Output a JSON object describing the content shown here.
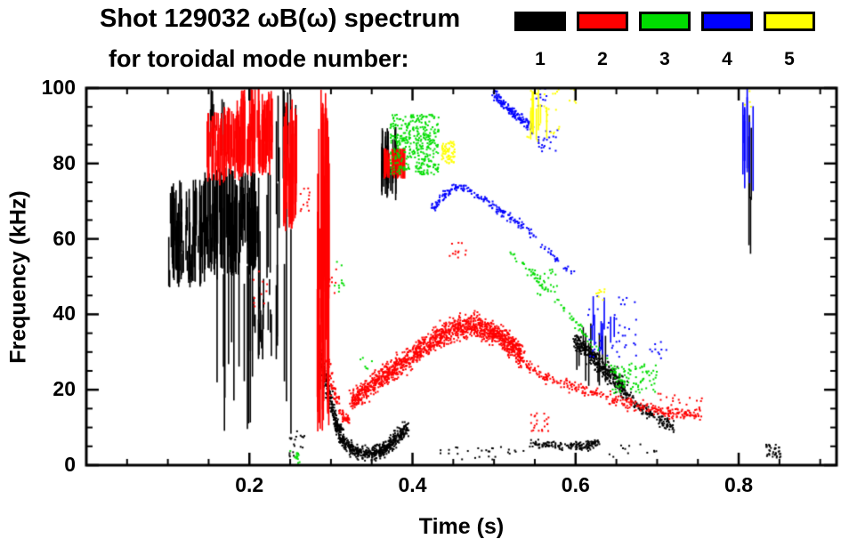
{
  "header": {
    "title": "Shot 129032 ωB(ω) spectrum",
    "subtitle": "for toroidal mode number:"
  },
  "legend": {
    "position": "top-right",
    "modes": [
      {
        "label": "1",
        "color": "#000000"
      },
      {
        "label": "2",
        "color": "#ff0000"
      },
      {
        "label": "3",
        "color": "#00dd00"
      },
      {
        "label": "4",
        "color": "#0000ff"
      },
      {
        "label": "5",
        "color": "#ffff00"
      }
    ]
  },
  "chart_data": {
    "type": "scatter",
    "title": "Shot 129032 ωB(ω) spectrum for toroidal mode number: 1 2 3 4 5",
    "xlabel": "Time (s)",
    "ylabel": "Frequency (kHz)",
    "xlim": [
      0,
      0.92
    ],
    "ylim": [
      0,
      100
    ],
    "xticks": [
      0.2,
      0.4,
      0.6,
      0.8
    ],
    "xtick_labels": [
      "0.2",
      "0.4",
      "0.6",
      "0.8"
    ],
    "xminor": 0.05,
    "yticks": [
      0,
      20,
      40,
      60,
      80,
      100
    ],
    "ytick_labels": [
      "0",
      "20",
      "40",
      "60",
      "80",
      "100"
    ],
    "yminor": 5,
    "grid": false,
    "legend_position": "top-right",
    "series": [
      {
        "name": "toroidal mode n=1",
        "mode": 1,
        "color": "#000000",
        "clusters": [
          {
            "kind": "vlines",
            "t": [
              0.1,
              0.145
            ],
            "f": [
              47,
              76
            ],
            "n": 80,
            "len": [
              4,
              20
            ]
          },
          {
            "kind": "vlines",
            "t": [
              0.145,
              0.21
            ],
            "f": [
              50,
              79
            ],
            "n": 110,
            "len": [
              5,
              26
            ]
          },
          {
            "kind": "vlines",
            "t": [
              0.15,
              0.17
            ],
            "f": [
              80,
              100
            ],
            "n": 7,
            "len": [
              6,
              16
            ]
          },
          {
            "kind": "vlines",
            "t": [
              0.16,
              0.265
            ],
            "f": [
              8,
              80
            ],
            "n": 26,
            "len": [
              18,
              60
            ]
          },
          {
            "kind": "vlines",
            "t": [
              0.205,
              0.228
            ],
            "f": [
              28,
              50
            ],
            "n": 14,
            "len": [
              4,
              12
            ]
          },
          {
            "kind": "vlines",
            "t": [
              0.233,
              0.262
            ],
            "f": [
              62,
              100
            ],
            "n": 12,
            "len": [
              8,
              28
            ]
          },
          {
            "kind": "dots",
            "t": [
              0.248,
              0.268
            ],
            "f": [
              2,
              9
            ],
            "n": 20,
            "size": 2
          },
          {
            "kind": "path",
            "pts": [
              [
                0.285,
                30
              ],
              [
                0.295,
                21
              ],
              [
                0.305,
                12
              ],
              [
                0.315,
                6.5
              ],
              [
                0.33,
                3.5
              ],
              [
                0.35,
                3
              ],
              [
                0.365,
                4
              ],
              [
                0.38,
                7
              ],
              [
                0.395,
                10
              ]
            ],
            "w": 5,
            "n": 800,
            "size": 2
          },
          {
            "kind": "vlines",
            "t": [
              0.36,
              0.38
            ],
            "f": [
              70,
              90
            ],
            "n": 28,
            "len": [
              5,
              16
            ]
          },
          {
            "kind": "dots",
            "t": [
              0.43,
              0.54
            ],
            "f": [
              1.5,
              5
            ],
            "n": 28,
            "size": 2
          },
          {
            "kind": "path",
            "pts": [
              [
                0.545,
                6
              ],
              [
                0.58,
                5
              ],
              [
                0.61,
                5
              ],
              [
                0.628,
                6
              ]
            ],
            "w": 3,
            "n": 160,
            "size": 2
          },
          {
            "kind": "path",
            "pts": [
              [
                0.6,
                33
              ],
              [
                0.615,
                30
              ],
              [
                0.632,
                26
              ],
              [
                0.648,
                23
              ],
              [
                0.662,
                20
              ]
            ],
            "w": 7,
            "n": 380,
            "size": 2
          },
          {
            "kind": "vlines",
            "t": [
              0.598,
              0.64
            ],
            "f": [
              20,
              38
            ],
            "n": 10,
            "len": [
              5,
              14
            ]
          },
          {
            "kind": "path",
            "pts": [
              [
                0.662,
                19
              ],
              [
                0.682,
                15
              ],
              [
                0.702,
                12
              ],
              [
                0.722,
                10
              ]
            ],
            "w": 4,
            "n": 130,
            "size": 2
          },
          {
            "kind": "dots",
            "t": [
              0.64,
              0.7
            ],
            "f": [
              2,
              6
            ],
            "n": 12,
            "size": 2
          },
          {
            "kind": "vlines",
            "t": [
              0.81,
              0.817
            ],
            "f": [
              55,
              95
            ],
            "n": 4,
            "len": [
              10,
              30
            ]
          },
          {
            "kind": "dots",
            "t": [
              0.833,
              0.852
            ],
            "f": [
              2,
              5.5
            ],
            "n": 35,
            "size": 2
          }
        ]
      },
      {
        "name": "toroidal mode n=2",
        "mode": 2,
        "color": "#ff0000",
        "clusters": [
          {
            "kind": "vlines",
            "t": [
              0.148,
              0.188
            ],
            "f": [
              74,
              95
            ],
            "n": 60,
            "len": [
              4,
              16
            ]
          },
          {
            "kind": "vlines",
            "t": [
              0.185,
              0.228
            ],
            "f": [
              76,
              100
            ],
            "n": 70,
            "len": [
              5,
              20
            ]
          },
          {
            "kind": "dots",
            "t": [
              0.205,
              0.222
            ],
            "f": [
              42,
              52
            ],
            "n": 10,
            "size": 2
          },
          {
            "kind": "vlines",
            "t": [
              0.242,
              0.258
            ],
            "f": [
              62,
              97
            ],
            "n": 40,
            "len": [
              8,
              28
            ]
          },
          {
            "kind": "dots",
            "t": [
              0.262,
              0.274
            ],
            "f": [
              66,
              74
            ],
            "n": 12,
            "size": 2
          },
          {
            "kind": "vlines",
            "t": [
              0.283,
              0.298
            ],
            "f": [
              8,
              100
            ],
            "n": 50,
            "len": [
              15,
              70
            ]
          },
          {
            "kind": "path",
            "pts": [
              [
                0.296,
                28
              ],
              [
                0.303,
                20
              ],
              [
                0.312,
                14
              ],
              [
                0.322,
                11
              ]
            ],
            "w": 4,
            "n": 90,
            "size": 2
          },
          {
            "kind": "dots",
            "t": [
              0.296,
              0.308
            ],
            "f": [
              45,
              55
            ],
            "n": 8,
            "size": 2
          },
          {
            "kind": "path",
            "pts": [
              [
                0.325,
                17
              ],
              [
                0.35,
                21
              ],
              [
                0.375,
                25
              ],
              [
                0.4,
                29
              ],
              [
                0.425,
                33
              ],
              [
                0.45,
                36
              ],
              [
                0.475,
                37
              ],
              [
                0.5,
                35
              ],
              [
                0.52,
                32
              ],
              [
                0.535,
                29
              ]
            ],
            "w": 8,
            "n": 1500,
            "size": 2
          },
          {
            "kind": "path",
            "pts": [
              [
                0.535,
                27
              ],
              [
                0.565,
                23
              ],
              [
                0.595,
                21
              ],
              [
                0.625,
                19
              ],
              [
                0.655,
                17
              ],
              [
                0.685,
                15
              ],
              [
                0.715,
                14
              ],
              [
                0.745,
                13
              ]
            ],
            "w": 4,
            "n": 280,
            "size": 2
          },
          {
            "kind": "vlines",
            "t": [
              0.362,
              0.392
            ],
            "f": [
              76,
              84
            ],
            "n": 35,
            "len": [
              3,
              9
            ]
          },
          {
            "kind": "dots",
            "t": [
              0.545,
              0.568
            ],
            "f": [
              9,
              14
            ],
            "n": 22,
            "size": 2
          },
          {
            "kind": "dots",
            "t": [
              0.7,
              0.755
            ],
            "f": [
              12,
              19
            ],
            "n": 45,
            "size": 2
          },
          {
            "kind": "dots",
            "t": [
              0.445,
              0.468
            ],
            "f": [
              55,
              59
            ],
            "n": 12,
            "size": 2
          }
        ]
      },
      {
        "name": "toroidal mode n=3",
        "mode": 3,
        "color": "#00dd00",
        "clusters": [
          {
            "kind": "dots",
            "t": [
              0.372,
              0.432
            ],
            "f": [
              77,
              93
            ],
            "n": 380,
            "size": 2
          },
          {
            "kind": "path",
            "pts": [
              [
                0.52,
                57
              ],
              [
                0.55,
                50
              ],
              [
                0.58,
                43
              ],
              [
                0.61,
                35
              ],
              [
                0.64,
                27
              ],
              [
                0.665,
                21
              ]
            ],
            "w": 3,
            "n": 100,
            "size": 2
          },
          {
            "kind": "dots",
            "t": [
              0.545,
              0.578
            ],
            "f": [
              45,
              52
            ],
            "n": 22,
            "size": 2
          },
          {
            "kind": "dots",
            "t": [
              0.645,
              0.7
            ],
            "f": [
              19,
              27
            ],
            "n": 80,
            "size": 2
          },
          {
            "kind": "dots",
            "t": [
              0.25,
              0.263
            ],
            "f": [
              0.5,
              4
            ],
            "n": 14,
            "size": 2
          },
          {
            "kind": "dots",
            "t": [
              0.3,
              0.316
            ],
            "f": [
              46,
              55
            ],
            "n": 10,
            "size": 2
          },
          {
            "kind": "dots",
            "t": [
              0.335,
              0.352
            ],
            "f": [
              25,
              30
            ],
            "n": 6,
            "size": 2
          }
        ]
      },
      {
        "name": "toroidal mode n=4",
        "mode": 4,
        "color": "#0000ff",
        "clusters": [
          {
            "kind": "path",
            "pts": [
              [
                0.425,
                68
              ],
              [
                0.44,
                72
              ],
              [
                0.455,
                74
              ],
              [
                0.47,
                73
              ],
              [
                0.49,
                70
              ],
              [
                0.51,
                67
              ],
              [
                0.53,
                64
              ],
              [
                0.55,
                61
              ]
            ],
            "w": 3,
            "n": 180,
            "size": 2
          },
          {
            "kind": "path",
            "pts": [
              [
                0.498,
                99
              ],
              [
                0.515,
                95
              ],
              [
                0.532,
                92
              ],
              [
                0.548,
                89
              ]
            ],
            "w": 4,
            "n": 150,
            "size": 2
          },
          {
            "kind": "dots",
            "t": [
              0.553,
              0.578
            ],
            "f": [
              83,
              89
            ],
            "n": 22,
            "size": 2
          },
          {
            "kind": "path",
            "pts": [
              [
                0.56,
                58
              ],
              [
                0.58,
                54
              ],
              [
                0.6,
                50
              ]
            ],
            "w": 2,
            "n": 28,
            "size": 2
          },
          {
            "kind": "dots",
            "t": [
              0.615,
              0.675
            ],
            "f": [
              28,
              45
            ],
            "n": 45,
            "size": 2
          },
          {
            "kind": "vlines",
            "t": [
              0.618,
              0.668
            ],
            "f": [
              28,
              45
            ],
            "n": 8,
            "len": [
              4,
              9
            ]
          },
          {
            "kind": "vlines",
            "t": [
              0.805,
              0.818
            ],
            "f": [
              72,
              100
            ],
            "n": 9,
            "len": [
              8,
              24
            ]
          },
          {
            "kind": "dots",
            "t": [
              0.69,
              0.712
            ],
            "f": [
              28,
              33
            ],
            "n": 10,
            "size": 2
          },
          {
            "kind": "dots",
            "t": [
              0.55,
              0.566
            ],
            "f": [
              95,
              100
            ],
            "n": 10,
            "size": 2
          }
        ]
      },
      {
        "name": "toroidal mode n=5",
        "mode": 5,
        "color": "#ffff00",
        "clusters": [
          {
            "kind": "dots",
            "t": [
              0.436,
              0.453
            ],
            "f": [
              80,
              86
            ],
            "n": 70,
            "size": 2
          },
          {
            "kind": "vlines",
            "t": [
              0.545,
              0.566
            ],
            "f": [
              86,
              100
            ],
            "n": 8,
            "len": [
              5,
              13
            ]
          },
          {
            "kind": "dots",
            "t": [
              0.54,
              0.58
            ],
            "f": [
              86,
              100
            ],
            "n": 26,
            "size": 2
          },
          {
            "kind": "dots",
            "t": [
              0.625,
              0.636
            ],
            "f": [
              43,
              47
            ],
            "n": 10,
            "size": 2
          },
          {
            "kind": "dots",
            "t": [
              0.59,
              0.602
            ],
            "f": [
              96,
              100
            ],
            "n": 6,
            "size": 2
          },
          {
            "kind": "dots",
            "t": [
              0.806,
              0.816
            ],
            "f": [
              95,
              100
            ],
            "n": 4,
            "size": 2
          }
        ]
      }
    ]
  }
}
